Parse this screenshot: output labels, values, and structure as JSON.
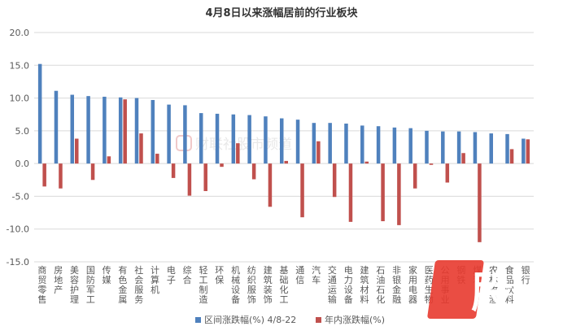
{
  "chart_data": {
    "type": "bar",
    "title": "4月8日以来涨幅居前的行业板块",
    "xlabel": "",
    "ylabel": "",
    "ylim": [
      -15,
      20
    ],
    "yticks": [
      "20.0",
      "15.0",
      "10.0",
      "5.0",
      "0.0",
      "-5.0",
      "-10.0",
      "-15.0"
    ],
    "grid": true,
    "legend_position": "bottom",
    "categories": [
      "商贸零售",
      "房地产",
      "美容护理",
      "国防军工",
      "传媒",
      "有色金属",
      "社会服务",
      "计算机",
      "电子",
      "综合",
      "轻工制造",
      "环保",
      "机械设备",
      "纺织服饰",
      "建筑装饰",
      "基础化工",
      "通信",
      "汽车",
      "交通运输",
      "电力设备",
      "建筑材料",
      "石油石化",
      "非银金融",
      "家用电器",
      "医药生物",
      "公用事业",
      "钢铁",
      "煤炭",
      "农林牧渔",
      "食品饮料",
      "银行"
    ],
    "series": [
      {
        "name": "区间涨跌幅(%) 4/8-22",
        "color": "#4f81bd",
        "values": [
          15.2,
          11.1,
          10.5,
          10.3,
          10.2,
          10.1,
          10.0,
          9.7,
          9.0,
          8.9,
          7.7,
          7.6,
          7.5,
          7.4,
          7.2,
          6.9,
          6.7,
          6.2,
          6.2,
          6.1,
          5.8,
          5.7,
          5.5,
          5.4,
          5.0,
          4.9,
          4.9,
          4.8,
          4.6,
          4.5,
          3.8
        ]
      },
      {
        "name": "年内涨跌幅(%)",
        "color": "#c0504d",
        "values": [
          -3.5,
          -3.8,
          3.8,
          -2.5,
          1.1,
          9.8,
          4.6,
          1.5,
          -2.2,
          -4.9,
          -4.2,
          -0.5,
          3.1,
          -2.4,
          -6.6,
          0.4,
          -8.2,
          3.4,
          -5.1,
          -8.9,
          0.3,
          -8.8,
          -9.4,
          -3.8,
          -0.2,
          -2.9,
          1.6,
          -12.0,
          0,
          2.2,
          3.7
        ]
      }
    ]
  },
  "watermark": {
    "text": "财联社股市频道"
  },
  "logo": {
    "glyph": "股"
  }
}
